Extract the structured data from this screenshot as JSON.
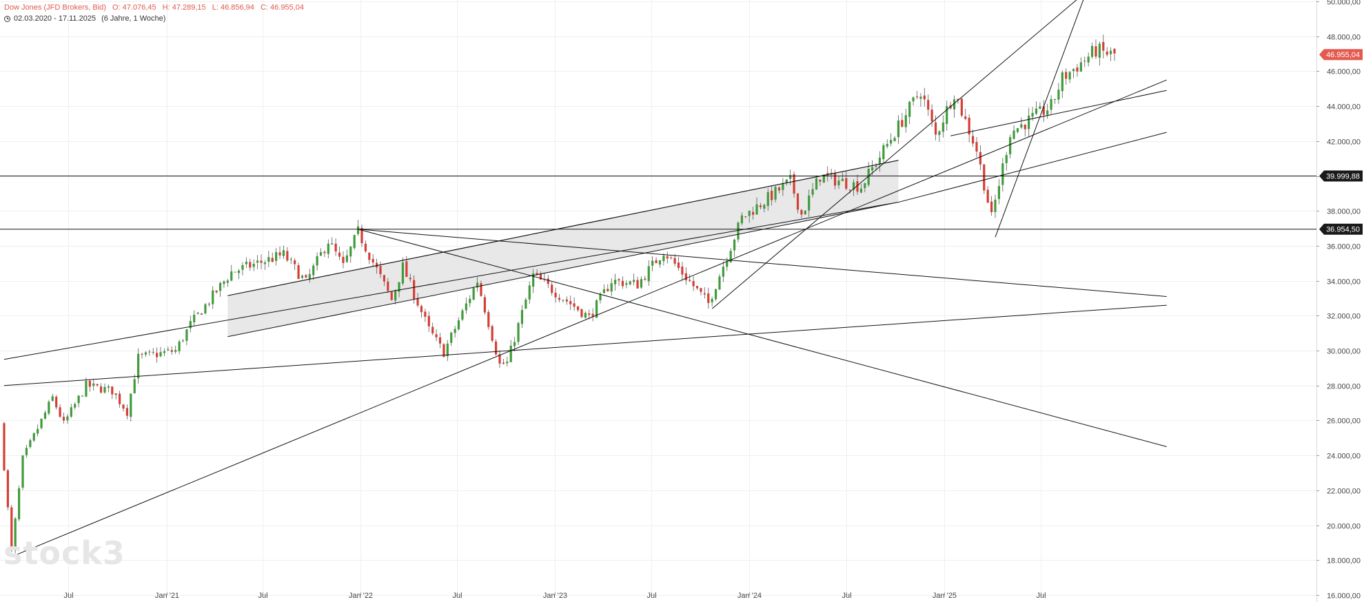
{
  "header": {
    "instrument": "Dow Jones (JFD Brokers, Bid)",
    "open": "O: 47.076,45",
    "high": "H: 47.289,15",
    "low": "L: 46.856,94",
    "close": "C: 46.955,04",
    "range": "02.03.2020 - 17.11.2025",
    "duration": "(6 Jahre, 1 Woche)"
  },
  "watermark": "stock3",
  "colors": {
    "up": "#3f9b3a",
    "down": "#d63d34",
    "grid": "#efefef",
    "badge_price": "#e45a50",
    "badge_level": "#1a1a1a",
    "trendline": "#111111",
    "channel_fill": "#e4e4e4"
  },
  "chart_data": {
    "type": "candlestick",
    "timeframe": "weekly",
    "x_range": [
      "2020-03-02",
      "2025-11-17"
    ],
    "ylim": [
      16000,
      50000
    ],
    "y_ticks": [
      16000,
      18000,
      20000,
      22000,
      24000,
      26000,
      28000,
      30000,
      32000,
      34000,
      36000,
      38000,
      40000,
      42000,
      44000,
      46000,
      48000,
      50000
    ],
    "y_tick_labels": [
      "16.000,00",
      "18.000,00",
      "20.000,00",
      "22.000,00",
      "24.000,00",
      "26.000,00",
      "28.000,00",
      "30.000,00",
      "32.000,00",
      "34.000,00",
      "36.000,00",
      "38.000,00",
      "40.000,00",
      "42.000,00",
      "44.000,00",
      "46.000,00",
      "48.000,00",
      "50.000,00"
    ],
    "x_ticks": [
      {
        "date": "2020-07-01",
        "label": "Jul"
      },
      {
        "date": "2021-01-01",
        "label": "Jan '21"
      },
      {
        "date": "2021-07-01",
        "label": "Jul"
      },
      {
        "date": "2022-01-01",
        "label": "Jan '22"
      },
      {
        "date": "2022-07-01",
        "label": "Jul"
      },
      {
        "date": "2023-01-01",
        "label": "Jan '23"
      },
      {
        "date": "2023-07-01",
        "label": "Jul"
      },
      {
        "date": "2024-01-01",
        "label": "Jan '24"
      },
      {
        "date": "2024-07-01",
        "label": "Jul"
      },
      {
        "date": "2025-01-01",
        "label": "Jan '25"
      },
      {
        "date": "2025-07-01",
        "label": "Jul"
      }
    ],
    "price_path": [
      [
        "2020-03-02",
        25800
      ],
      [
        "2020-03-23",
        18500
      ],
      [
        "2020-04-13",
        23800
      ],
      [
        "2020-06-08",
        27300
      ],
      [
        "2020-06-29",
        25800
      ],
      [
        "2020-08-10",
        28000
      ],
      [
        "2020-09-28",
        27700
      ],
      [
        "2020-10-26",
        26500
      ],
      [
        "2020-11-16",
        29600
      ],
      [
        "2021-01-25",
        30000
      ],
      [
        "2021-02-22",
        31500
      ],
      [
        "2021-05-10",
        34500
      ],
      [
        "2021-08-16",
        35500
      ],
      [
        "2021-09-27",
        33900
      ],
      [
        "2021-11-08",
        36300
      ],
      [
        "2021-12-06",
        34800
      ],
      [
        "2022-01-03",
        36800
      ],
      [
        "2022-03-07",
        32900
      ],
      [
        "2022-03-28",
        34800
      ],
      [
        "2022-05-16",
        31200
      ],
      [
        "2022-06-13",
        29900
      ],
      [
        "2022-08-15",
        34000
      ],
      [
        "2022-09-26",
        29200
      ],
      [
        "2022-10-10",
        29300
      ],
      [
        "2022-11-28",
        34300
      ],
      [
        "2023-01-02",
        33500
      ],
      [
        "2023-03-13",
        31900
      ],
      [
        "2023-04-24",
        34000
      ],
      [
        "2023-06-12",
        33800
      ],
      [
        "2023-07-31",
        35700
      ],
      [
        "2023-10-23",
        32700
      ],
      [
        "2023-12-25",
        37600
      ],
      [
        "2024-03-25",
        39700
      ],
      [
        "2024-04-15",
        37800
      ],
      [
        "2024-05-20",
        40000
      ],
      [
        "2024-08-05",
        39400
      ],
      [
        "2024-11-25",
        44900
      ],
      [
        "2024-12-23",
        42300
      ],
      [
        "2025-01-27",
        44800
      ],
      [
        "2025-03-10",
        41500
      ],
      [
        "2025-04-07",
        37600
      ],
      [
        "2025-05-12",
        42500
      ],
      [
        "2025-07-28",
        44000
      ],
      [
        "2025-08-18",
        45600
      ],
      [
        "2025-09-15",
        46300
      ],
      [
        "2025-10-20",
        47200
      ],
      [
        "2025-11-17",
        46955
      ]
    ],
    "horizontal_levels": [
      {
        "value": 39999.88,
        "label": "39.999,88"
      },
      {
        "value": 36954.5,
        "label": "36.954,50"
      }
    ],
    "current_price": {
      "value": 46955.04,
      "label": "46.955,04"
    },
    "trendlines": [
      {
        "from": [
          "2021-04-26",
          33150
        ],
        "to": [
          "2024-10-07",
          40900
        ]
      },
      {
        "from": [
          "2021-04-26",
          30800
        ],
        "to": [
          "2024-10-07",
          38500
        ]
      },
      {
        "from": [
          "2020-03-02",
          29500
        ],
        "to": [
          "2024-10-07",
          38500
        ]
      },
      {
        "from": [
          "2021-04-26",
          33150
        ],
        "to": [
          "2024-10-07",
          40900
        ]
      },
      {
        "from": [
          "2024-10-07",
          38500
        ],
        "to": [
          "2026-02-23",
          42500
        ]
      },
      {
        "from": [
          "2020-03-02",
          28000
        ],
        "to": [
          "2026-02-23",
          32600
        ]
      },
      {
        "from": [
          "2020-03-16",
          18200
        ],
        "to": [
          "2026-02-23",
          45500
        ]
      },
      {
        "from": [
          "2021-12-27",
          36954.5
        ],
        "to": [
          "2026-02-23",
          33100
        ]
      },
      {
        "from": [
          "2021-12-27",
          36954.5
        ],
        "to": [
          "2026-02-23",
          24500
        ]
      },
      {
        "from": [
          "2023-10-23",
          32400
        ],
        "to": [
          "2025-09-15",
          50300
        ]
      },
      {
        "from": [
          "2025-04-07",
          36500
        ],
        "to": [
          "2025-09-22",
          50300
        ]
      },
      {
        "from": [
          "2025-01-13",
          42300
        ],
        "to": [
          "2026-02-23",
          44900
        ]
      }
    ],
    "channel": {
      "from_date": "2021-04-26",
      "to_date": "2024-10-07",
      "upper": [
        33150,
        40900
      ],
      "lower": [
        30800,
        38500
      ]
    }
  }
}
